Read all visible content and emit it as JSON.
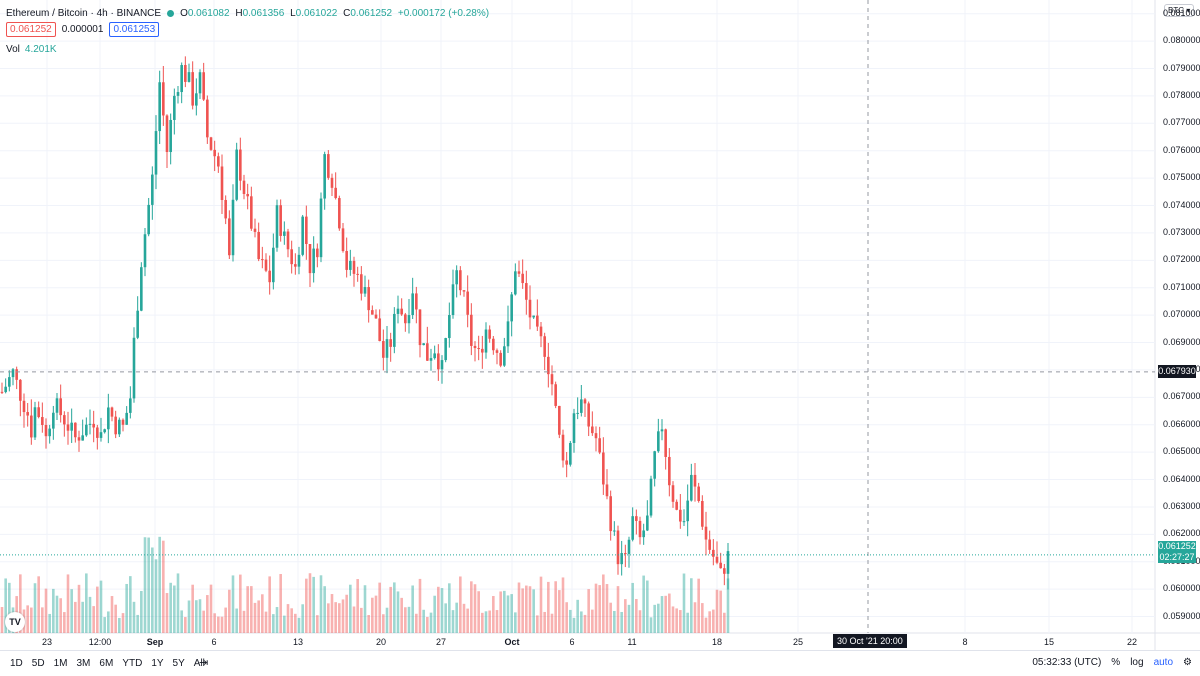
{
  "legend": {
    "title": "Ethereum / Bitcoin · 4h · BINANCE",
    "ohlc": {
      "o_label": "O",
      "o": "0.061082",
      "h_label": "H",
      "h": "0.061356",
      "l_label": "L",
      "l": "0.061022",
      "c_label": "C",
      "c": "0.061252",
      "change": "+0.000172 (+0.28%)"
    },
    "bid": "0.061252",
    "spread": "0.000001",
    "ask": "0.061253",
    "vol_label": "Vol",
    "vol_value": "4.201K"
  },
  "colors": {
    "up": "#26a69a",
    "down": "#ef5350",
    "crosshair": "#9598a1",
    "grid": "#f0f3fa"
  },
  "axis": {
    "currency_badge": "BTC",
    "crosshair_price": "0.067930",
    "last_price": "0.061252",
    "countdown": "02:27:27",
    "crosshair_date": "30 Oct '21   20:00"
  },
  "bottom_bar": {
    "ranges": [
      "1D",
      "5D",
      "1M",
      "3M",
      "6M",
      "YTD",
      "1Y",
      "5Y",
      "All"
    ],
    "time": "05:32:33 (UTC)",
    "percent": "%",
    "log": "log",
    "auto": "auto"
  },
  "logo_text": "TV",
  "chart_data": {
    "type": "candlestick",
    "yticks": [
      "0.081000",
      "0.080000",
      "0.079000",
      "0.078000",
      "0.077000",
      "0.076000",
      "0.075000",
      "0.074000",
      "0.073000",
      "0.072000",
      "0.071000",
      "0.070000",
      "0.069000",
      "0.068000",
      "0.067000",
      "0.066000",
      "0.065000",
      "0.064000",
      "0.063000",
      "0.062000",
      "0.061000",
      "0.060000",
      "0.059000"
    ],
    "ylim": [
      0.0584,
      0.0815
    ],
    "xticks": [
      "23",
      "12:00",
      "Sep",
      "6",
      "13",
      "20",
      "27",
      "Oct",
      "6",
      "11",
      "18",
      "25",
      "8",
      "15",
      "22"
    ],
    "series": [
      {
        "t": 0,
        "c": 0.0672
      },
      {
        "t": 3,
        "c": 0.0679
      },
      {
        "t": 4,
        "c": 0.0675
      },
      {
        "t": 7,
        "c": 0.0664
      },
      {
        "t": 8,
        "c": 0.0658
      },
      {
        "t": 9,
        "c": 0.0666
      },
      {
        "t": 11,
        "c": 0.0662
      },
      {
        "t": 12,
        "c": 0.0655
      },
      {
        "t": 14,
        "c": 0.0668
      },
      {
        "t": 17,
        "c": 0.0662
      },
      {
        "t": 20,
        "c": 0.0655
      },
      {
        "t": 22,
        "c": 0.0658
      },
      {
        "t": 25,
        "c": 0.0662
      },
      {
        "t": 27,
        "c": 0.0656
      },
      {
        "t": 29,
        "c": 0.0666
      },
      {
        "t": 31,
        "c": 0.066
      },
      {
        "t": 33,
        "c": 0.0659
      },
      {
        "t": 35,
        "c": 0.067
      },
      {
        "t": 36,
        "c": 0.069
      },
      {
        "t": 38,
        "c": 0.072
      },
      {
        "t": 41,
        "c": 0.075
      },
      {
        "t": 43,
        "c": 0.0785
      },
      {
        "t": 45,
        "c": 0.076
      },
      {
        "t": 47,
        "c": 0.078
      },
      {
        "t": 49,
        "c": 0.079
      },
      {
        "t": 51,
        "c": 0.0785
      },
      {
        "t": 52,
        "c": 0.0779
      },
      {
        "t": 54,
        "c": 0.0786
      },
      {
        "t": 56,
        "c": 0.0765
      },
      {
        "t": 59,
        "c": 0.0755
      },
      {
        "t": 61,
        "c": 0.0735
      },
      {
        "t": 62,
        "c": 0.072
      },
      {
        "t": 64,
        "c": 0.0758
      },
      {
        "t": 67,
        "c": 0.074
      },
      {
        "t": 70,
        "c": 0.072
      },
      {
        "t": 73,
        "c": 0.0713
      },
      {
        "t": 75,
        "c": 0.0737
      },
      {
        "t": 77,
        "c": 0.0728
      },
      {
        "t": 80,
        "c": 0.0717
      },
      {
        "t": 82,
        "c": 0.0735
      },
      {
        "t": 84,
        "c": 0.0718
      },
      {
        "t": 86,
        "c": 0.0725
      },
      {
        "t": 88,
        "c": 0.0758
      },
      {
        "t": 90,
        "c": 0.075
      },
      {
        "t": 92,
        "c": 0.0735
      },
      {
        "t": 94,
        "c": 0.0718
      },
      {
        "t": 97,
        "c": 0.0714
      },
      {
        "t": 100,
        "c": 0.0705
      },
      {
        "t": 102,
        "c": 0.0697
      },
      {
        "t": 104,
        "c": 0.0685
      },
      {
        "t": 106,
        "c": 0.069
      },
      {
        "t": 108,
        "c": 0.0705
      },
      {
        "t": 110,
        "c": 0.0698
      },
      {
        "t": 112,
        "c": 0.071
      },
      {
        "t": 114,
        "c": 0.0692
      },
      {
        "t": 116,
        "c": 0.0685
      },
      {
        "t": 118,
        "c": 0.0688
      },
      {
        "t": 120,
        "c": 0.068
      },
      {
        "t": 122,
        "c": 0.07
      },
      {
        "t": 124,
        "c": 0.0715
      },
      {
        "t": 126,
        "c": 0.0705
      },
      {
        "t": 128,
        "c": 0.069
      },
      {
        "t": 130,
        "c": 0.0685
      },
      {
        "t": 132,
        "c": 0.0695
      },
      {
        "t": 134,
        "c": 0.069
      },
      {
        "t": 136,
        "c": 0.0685
      },
      {
        "t": 138,
        "c": 0.0695
      },
      {
        "t": 140,
        "c": 0.0718
      },
      {
        "t": 142,
        "c": 0.071
      },
      {
        "t": 144,
        "c": 0.07
      },
      {
        "t": 146,
        "c": 0.0692
      },
      {
        "t": 148,
        "c": 0.0688
      },
      {
        "t": 150,
        "c": 0.0675
      },
      {
        "t": 152,
        "c": 0.0655
      },
      {
        "t": 154,
        "c": 0.0645
      },
      {
        "t": 156,
        "c": 0.0665
      },
      {
        "t": 158,
        "c": 0.0668
      },
      {
        "t": 160,
        "c": 0.066
      },
      {
        "t": 162,
        "c": 0.0655
      },
      {
        "t": 164,
        "c": 0.064
      },
      {
        "t": 166,
        "c": 0.0625
      },
      {
        "t": 168,
        "c": 0.0612
      },
      {
        "t": 170,
        "c": 0.061
      },
      {
        "t": 172,
        "c": 0.0625
      },
      {
        "t": 174,
        "c": 0.0618
      },
      {
        "t": 176,
        "c": 0.0625
      },
      {
        "t": 178,
        "c": 0.0648
      },
      {
        "t": 180,
        "c": 0.066
      },
      {
        "t": 182,
        "c": 0.064
      },
      {
        "t": 184,
        "c": 0.0628
      },
      {
        "t": 186,
        "c": 0.0625
      },
      {
        "t": 188,
        "c": 0.064
      },
      {
        "t": 190,
        "c": 0.0632
      },
      {
        "t": 192,
        "c": 0.0618
      },
      {
        "t": 194,
        "c": 0.0612
      },
      {
        "t": 196,
        "c": 0.0605
      },
      {
        "t": 198,
        "c": 0.0612
      }
    ]
  }
}
